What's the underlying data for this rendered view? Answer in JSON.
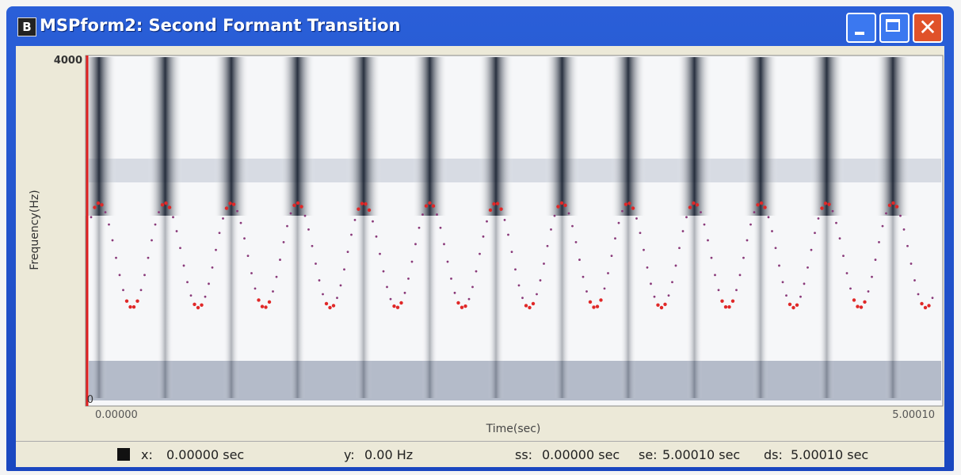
{
  "window": {
    "icon": "B",
    "title": "MSPform2: Second Formant Transition"
  },
  "plot": {
    "y_label": "Frequency(Hz)",
    "y_max": "4000",
    "y_min": "0",
    "x_label": "Time(sec)",
    "x_start": "0.00000",
    "x_end": "5.00010"
  },
  "status": {
    "x_label": "x:",
    "x_value": "0.00000 sec",
    "y_label": "y:",
    "y_value": "0.00 Hz",
    "ss_label": "ss:",
    "ss_value": "0.00000 sec",
    "se_label": "se:",
    "se_value": "5.00010 sec",
    "ds_label": "ds:",
    "ds_value": "5.00010 sec"
  }
}
